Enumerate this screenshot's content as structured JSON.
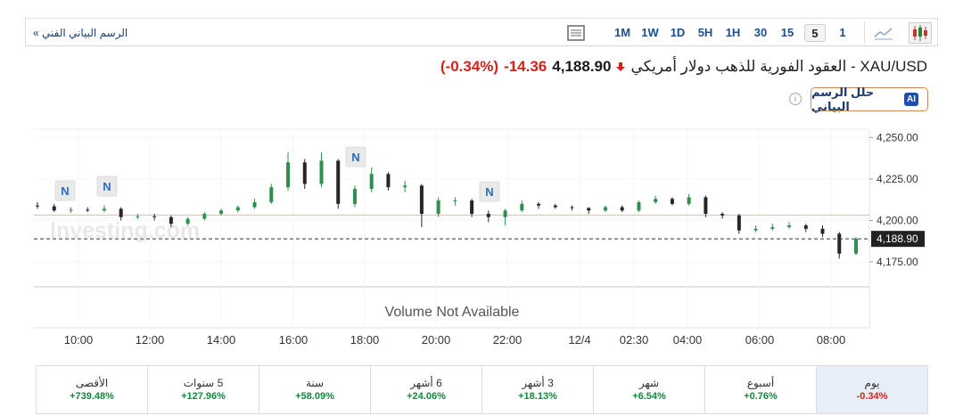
{
  "toolbar": {
    "link": "الرسم البياني الفني »",
    "intervals": [
      "1M",
      "1W",
      "1D",
      "5H",
      "1H",
      "30",
      "15",
      "5",
      "1"
    ],
    "selected_index": 7
  },
  "header": {
    "title": "XAU/USD - العقود الفورية للذهب دولار أمريكي",
    "price": "4,188.90",
    "change": "-14.36",
    "change_pct": "(-0.34%)",
    "ai_badge": "AI",
    "ai_button": "حلل الرسم البياني"
  },
  "chart_data": {
    "type": "candlestick",
    "watermark": "Investing.com",
    "volume_note": "Volume Not Available",
    "news_markers": [
      "N",
      "N",
      "N",
      "N"
    ],
    "up_color": "#2f8f4e",
    "down_color": "#262626",
    "open": [
      4209,
      4208.5,
      4206,
      4206.5,
      4206,
      4207,
      4202,
      4202.5,
      4202,
      4198,
      4201,
      4204,
      4206,
      4208,
      4211,
      4220,
      4235,
      4222,
      4236,
      4210,
      4219,
      4228,
      4220,
      4221,
      4204,
      4212,
      4212,
      4204,
      4202,
      4206,
      4210,
      4209,
      4208,
      4207.5,
      4206,
      4208,
      4206,
      4211,
      4213,
      4210,
      4214,
      4204,
      4203,
      4194,
      4195,
      4196,
      4197,
      4195,
      4192,
      4180
    ],
    "high": [
      4211,
      4210,
      4208,
      4208,
      4209,
      4208,
      4204,
      4204,
      4203,
      4202,
      4205,
      4207,
      4209,
      4213,
      4222,
      4241,
      4237,
      4241,
      4237,
      4221,
      4232,
      4229,
      4224,
      4222,
      4214,
      4214,
      4213,
      4206,
      4207,
      4212,
      4211,
      4210,
      4209,
      4208,
      4209,
      4209,
      4212,
      4215,
      4214,
      4216,
      4215,
      4205,
      4204,
      4197,
      4198,
      4199,
      4198,
      4197,
      4193,
      4190
    ],
    "low": [
      4207,
      4205,
      4204.5,
      4205,
      4205,
      4200,
      4201,
      4200,
      4196,
      4197,
      4200,
      4203,
      4205,
      4207,
      4210,
      4218,
      4219,
      4220,
      4207,
      4208,
      4217,
      4218,
      4217,
      4196,
      4202,
      4209,
      4202,
      4199,
      4197,
      4205,
      4207,
      4207,
      4206,
      4204,
      4205,
      4205,
      4205,
      4210,
      4209,
      4209,
      4202,
      4201,
      4192,
      4193,
      4194,
      4195,
      4193,
      4190,
      4177,
      4179
    ],
    "close": [
      4208.5,
      4206,
      4206.5,
      4206,
      4207,
      4202,
      4202.5,
      4202,
      4198,
      4201,
      4204,
      4206,
      4208,
      4211,
      4220,
      4235,
      4222,
      4236,
      4210,
      4219,
      4228,
      4220,
      4221,
      4204,
      4212,
      4212,
      4204,
      4202,
      4206,
      4210,
      4209,
      4208,
      4207.5,
      4206,
      4208,
      4206,
      4211,
      4213,
      4210,
      4214,
      4204,
      4203,
      4194,
      4195,
      4196,
      4197,
      4195,
      4192,
      4180,
      4188.9
    ],
    "ylim": [
      4160,
      4255
    ],
    "yticks": [
      {
        "value": 4250,
        "label": "4,250.00"
      },
      {
        "value": 4225,
        "label": "4,225.00"
      },
      {
        "value": 4200,
        "label": "4,200.00"
      },
      {
        "value": 4175,
        "label": "4,175.00"
      }
    ],
    "x_labels": [
      "10:00",
      "12:00",
      "14:00",
      "16:00",
      "18:00",
      "20:00",
      "22:00",
      "12/4",
      "02:30",
      "04:00",
      "06:00",
      "08:00"
    ],
    "last_price": {
      "value": 4188.9,
      "label": "4,188.90"
    },
    "reference_line": 4203.26
  },
  "performance": [
    {
      "label": "الأقصى",
      "value": "+739.48%"
    },
    {
      "label": "5 سنوات",
      "value": "+127.96%"
    },
    {
      "label": "سنة",
      "value": "+58.09%"
    },
    {
      "label": "6 أشهر",
      "value": "+24.06%"
    },
    {
      "label": "3 أشهر",
      "value": "+18.13%"
    },
    {
      "label": "شهر",
      "value": "+6.54%"
    },
    {
      "label": "أسبوع",
      "value": "+0.76%"
    },
    {
      "label": "يوم",
      "value": "-0.34%"
    }
  ],
  "performance_selected_index": 7
}
